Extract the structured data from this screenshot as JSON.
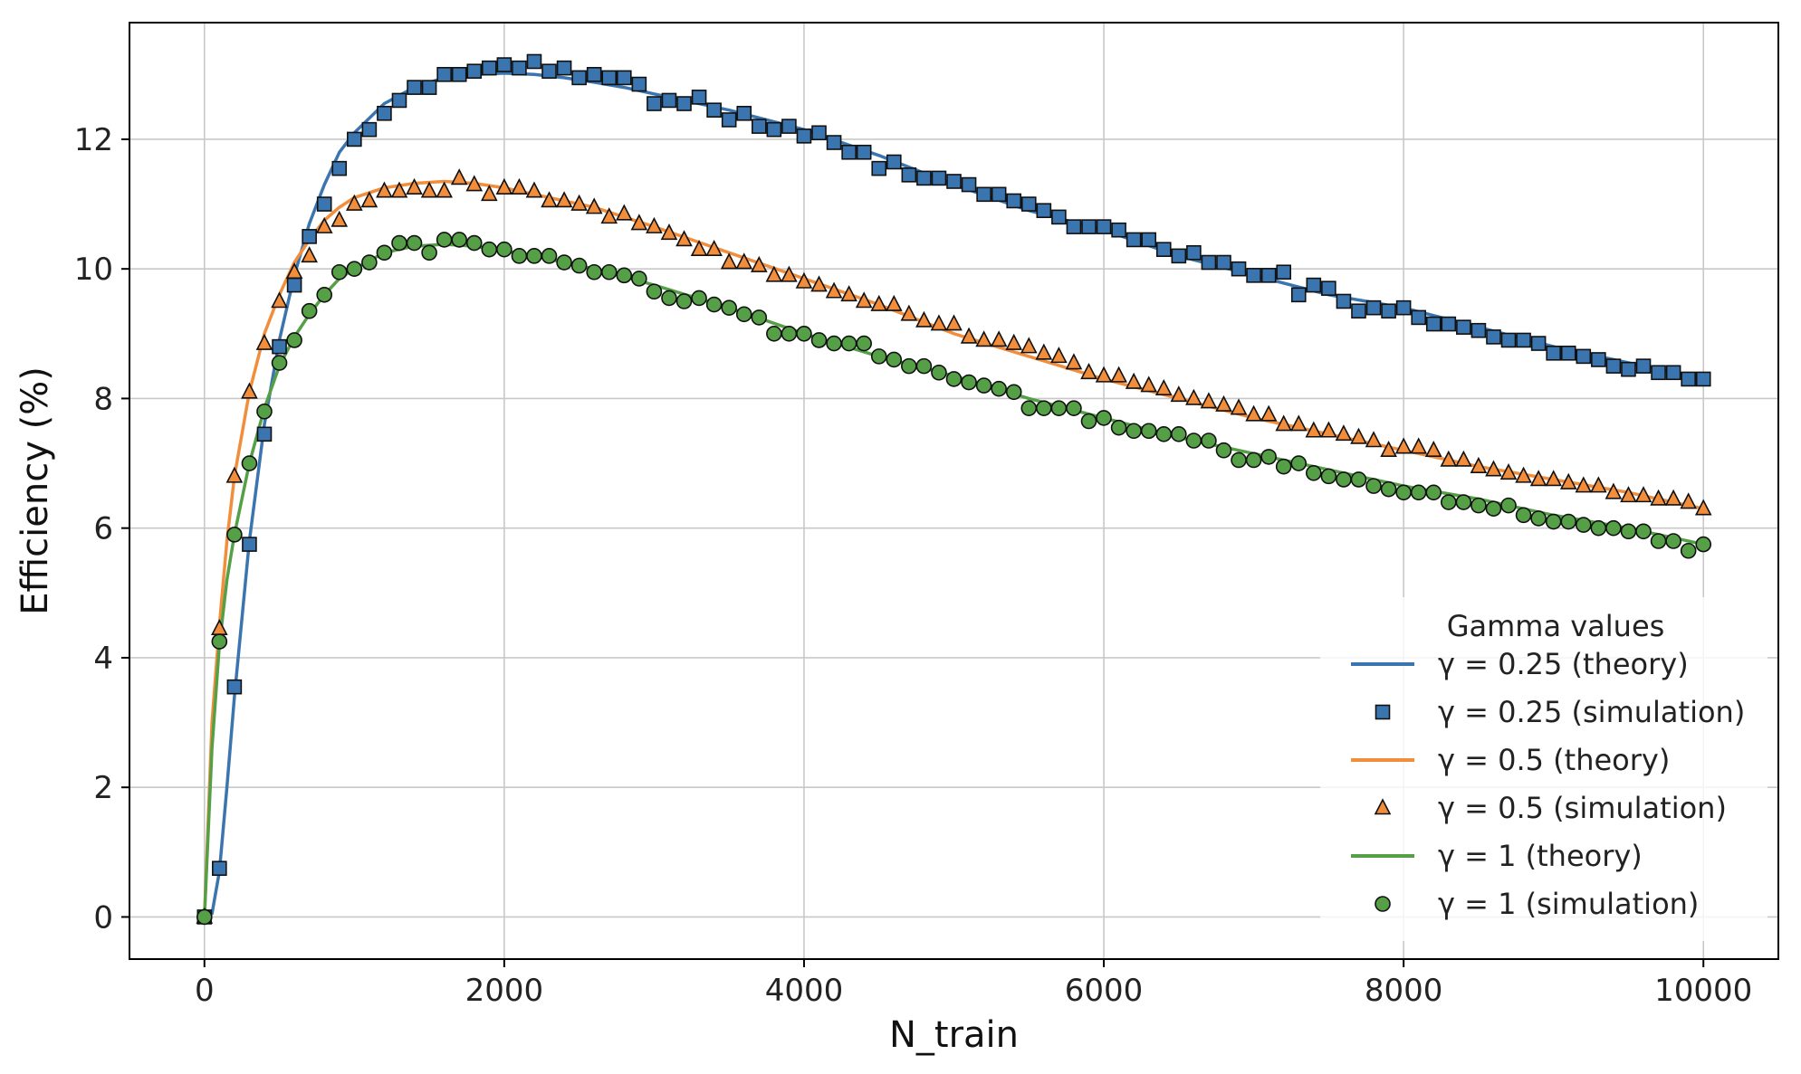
{
  "chart_data": {
    "type": "line",
    "title": "",
    "xlabel": "N_train",
    "ylabel": "Efficiency (%)",
    "xlim": [
      -500,
      10500
    ],
    "ylim": [
      -0.65,
      13.8
    ],
    "xticks": [
      0,
      2000,
      4000,
      6000,
      8000,
      10000
    ],
    "yticks": [
      0,
      2,
      4,
      6,
      8,
      10,
      12
    ],
    "grid": true,
    "legend": {
      "title": "Gamma values",
      "placement": "bottom-right",
      "entries": [
        "γ = 0.25 (theory)",
        "γ = 0.25 (simulation)",
        "γ = 0.5 (theory)",
        "γ = 0.5 (simulation)",
        "γ = 1 (theory)",
        "γ = 1 (simulation)"
      ]
    },
    "x_theory": [
      0,
      50,
      100,
      150,
      200,
      300,
      400,
      500,
      600,
      700,
      800,
      900,
      1000,
      1200,
      1400,
      1600,
      1800,
      2000,
      2200,
      2400,
      2600,
      2800,
      3000,
      3500,
      4000,
      4500,
      5000,
      5500,
      6000,
      6500,
      7000,
      7500,
      8000,
      8500,
      9000,
      9500,
      10000
    ],
    "x_sim": [
      0,
      100,
      200,
      300,
      400,
      500,
      600,
      700,
      800,
      900,
      1000,
      1100,
      1200,
      1300,
      1400,
      1500,
      1600,
      1700,
      1800,
      1900,
      2000,
      2100,
      2200,
      2300,
      2400,
      2500,
      2600,
      2700,
      2800,
      2900,
      3000,
      3100,
      3200,
      3300,
      3400,
      3500,
      3600,
      3700,
      3800,
      3900,
      4000,
      4100,
      4200,
      4300,
      4400,
      4500,
      4600,
      4700,
      4800,
      4900,
      5000,
      5100,
      5200,
      5300,
      5400,
      5500,
      5600,
      5700,
      5800,
      5900,
      6000,
      6100,
      6200,
      6300,
      6400,
      6500,
      6600,
      6700,
      6800,
      6900,
      7000,
      7100,
      7200,
      7300,
      7400,
      7500,
      7600,
      7700,
      7800,
      7900,
      8000,
      8100,
      8200,
      8300,
      8400,
      8500,
      8600,
      8700,
      8800,
      8900,
      9000,
      9100,
      9200,
      9300,
      9400,
      9500,
      9600,
      9700,
      9800,
      9900,
      10000
    ],
    "series": [
      {
        "name": "γ = 0.25 (theory)",
        "kind": "line",
        "color": "#3a75b0",
        "values": [
          0,
          0.05,
          0.7,
          2.0,
          3.4,
          5.8,
          7.6,
          8.9,
          9.9,
          10.7,
          11.3,
          11.8,
          12.1,
          12.55,
          12.8,
          12.95,
          13.0,
          13.02,
          13.0,
          12.95,
          12.88,
          12.8,
          12.7,
          12.45,
          12.15,
          11.75,
          11.3,
          10.9,
          10.6,
          10.2,
          9.9,
          9.6,
          9.4,
          9.1,
          8.8,
          8.55,
          8.3
        ]
      },
      {
        "name": "γ = 0.25 (simulation)",
        "kind": "scatter",
        "marker": "square",
        "color": "#3a75b0",
        "values": [
          0,
          0.75,
          3.55,
          5.75,
          7.45,
          8.8,
          9.75,
          10.5,
          11.0,
          11.55,
          12.0,
          12.15,
          12.4,
          12.6,
          12.8,
          12.8,
          13.0,
          13.0,
          13.05,
          13.1,
          13.15,
          13.1,
          13.2,
          13.05,
          13.1,
          12.95,
          13.0,
          12.95,
          12.95,
          12.85,
          12.55,
          12.6,
          12.55,
          12.65,
          12.45,
          12.3,
          12.4,
          12.2,
          12.15,
          12.2,
          12.05,
          12.1,
          11.95,
          11.8,
          11.8,
          11.55,
          11.65,
          11.45,
          11.4,
          11.4,
          11.35,
          11.3,
          11.15,
          11.15,
          11.05,
          11.0,
          10.9,
          10.8,
          10.65,
          10.65,
          10.65,
          10.6,
          10.45,
          10.45,
          10.3,
          10.2,
          10.25,
          10.1,
          10.1,
          10.0,
          9.9,
          9.9,
          9.95,
          9.6,
          9.75,
          9.7,
          9.5,
          9.35,
          9.4,
          9.35,
          9.4,
          9.25,
          9.15,
          9.15,
          9.1,
          9.05,
          8.95,
          8.9,
          8.9,
          8.85,
          8.7,
          8.7,
          8.65,
          8.6,
          8.5,
          8.45,
          8.5,
          8.4,
          8.4,
          8.3,
          8.3
        ]
      },
      {
        "name": "γ = 0.5 (theory)",
        "kind": "line",
        "color": "#f28e3b",
        "values": [
          0,
          3.0,
          4.5,
          5.8,
          6.8,
          8.1,
          9.0,
          9.6,
          10.1,
          10.45,
          10.75,
          10.95,
          11.1,
          11.25,
          11.32,
          11.35,
          11.32,
          11.25,
          11.15,
          11.05,
          10.95,
          10.8,
          10.65,
          10.25,
          9.85,
          9.45,
          9.0,
          8.65,
          8.3,
          8.0,
          7.7,
          7.45,
          7.2,
          6.95,
          6.75,
          6.55,
          6.3
        ]
      },
      {
        "name": "γ = 0.5 (simulation)",
        "kind": "scatter",
        "marker": "triangle",
        "color": "#f28e3b",
        "values": [
          0,
          4.45,
          6.8,
          8.1,
          8.85,
          9.5,
          9.95,
          10.2,
          10.65,
          10.75,
          11.0,
          11.05,
          11.2,
          11.2,
          11.25,
          11.2,
          11.2,
          11.4,
          11.3,
          11.15,
          11.25,
          11.25,
          11.2,
          11.05,
          11.05,
          11.0,
          10.95,
          10.8,
          10.85,
          10.7,
          10.65,
          10.55,
          10.45,
          10.3,
          10.3,
          10.1,
          10.1,
          10.05,
          9.9,
          9.9,
          9.8,
          9.75,
          9.65,
          9.6,
          9.5,
          9.45,
          9.45,
          9.3,
          9.2,
          9.15,
          9.15,
          8.95,
          8.9,
          8.9,
          8.85,
          8.8,
          8.7,
          8.65,
          8.55,
          8.4,
          8.35,
          8.35,
          8.25,
          8.2,
          8.15,
          8.05,
          8.0,
          7.95,
          7.9,
          7.85,
          7.75,
          7.75,
          7.6,
          7.6,
          7.5,
          7.5,
          7.45,
          7.4,
          7.35,
          7.2,
          7.25,
          7.25,
          7.2,
          7.05,
          7.05,
          6.95,
          6.9,
          6.85,
          6.8,
          6.75,
          6.75,
          6.7,
          6.65,
          6.65,
          6.55,
          6.5,
          6.5,
          6.45,
          6.45,
          6.4,
          6.3
        ]
      },
      {
        "name": "γ = 1 (theory)",
        "kind": "line",
        "color": "#55a047",
        "values": [
          0,
          2.6,
          4.2,
          5.2,
          5.9,
          7.0,
          7.85,
          8.5,
          8.95,
          9.3,
          9.6,
          9.85,
          10.0,
          10.25,
          10.35,
          10.38,
          10.35,
          10.28,
          10.2,
          10.1,
          10.0,
          9.88,
          9.75,
          9.4,
          9.0,
          8.65,
          8.35,
          8.0,
          7.7,
          7.4,
          7.15,
          6.9,
          6.65,
          6.45,
          6.2,
          6.0,
          5.75
        ]
      },
      {
        "name": "γ = 1 (simulation)",
        "kind": "scatter",
        "marker": "circle",
        "color": "#55a047",
        "values": [
          0,
          4.25,
          5.9,
          7.0,
          7.8,
          8.55,
          8.9,
          9.35,
          9.6,
          9.95,
          10.0,
          10.1,
          10.25,
          10.4,
          10.4,
          10.25,
          10.45,
          10.45,
          10.4,
          10.3,
          10.3,
          10.2,
          10.2,
          10.2,
          10.1,
          10.05,
          9.95,
          9.95,
          9.9,
          9.85,
          9.65,
          9.55,
          9.5,
          9.55,
          9.45,
          9.4,
          9.3,
          9.25,
          9.0,
          9.0,
          9.0,
          8.9,
          8.85,
          8.85,
          8.85,
          8.65,
          8.6,
          8.5,
          8.5,
          8.4,
          8.3,
          8.25,
          8.2,
          8.15,
          8.1,
          7.85,
          7.85,
          7.85,
          7.85,
          7.65,
          7.7,
          7.55,
          7.5,
          7.5,
          7.45,
          7.45,
          7.35,
          7.35,
          7.2,
          7.05,
          7.05,
          7.1,
          6.95,
          7.0,
          6.85,
          6.8,
          6.75,
          6.75,
          6.65,
          6.6,
          6.55,
          6.55,
          6.55,
          6.4,
          6.4,
          6.35,
          6.3,
          6.35,
          6.2,
          6.15,
          6.1,
          6.1,
          6.05,
          6.0,
          6.0,
          5.95,
          5.95,
          5.8,
          5.8,
          5.65,
          5.75
        ]
      }
    ]
  }
}
